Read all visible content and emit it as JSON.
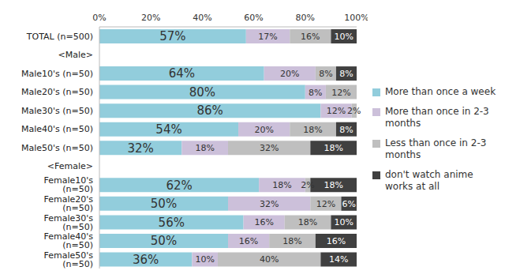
{
  "chart_data": {
    "type": "bar",
    "orientation": "horizontal",
    "stacked": true,
    "data_labels": true,
    "legend": "right",
    "grid": false,
    "categories": [
      "TOTAL (n=500)",
      "<Male>",
      "Male10's (n=50)",
      "Male20's (n=50)",
      "Male30's (n=50)",
      "Male40's (n=50)",
      "Male50's (n=50)",
      "<Female>",
      "Female10's (n=50)",
      "Female20's (n=50)",
      "Female30's (n=50)",
      "Female40's (n=50)",
      "Female50's (n=50)"
    ],
    "xlim": [
      0,
      100
    ],
    "xticks": [
      {
        "value": 0,
        "label": "0%"
      },
      {
        "value": 20,
        "label": "20%"
      },
      {
        "value": 40,
        "label": "40%"
      },
      {
        "value": 60,
        "label": "60%"
      },
      {
        "value": 80,
        "label": "80%"
      },
      {
        "value": 100,
        "label": "100%"
      }
    ],
    "series": [
      {
        "name": "More than once a week",
        "color": "#92cddc",
        "values": [
          57,
          null,
          64,
          80,
          86,
          54,
          32,
          null,
          62,
          50,
          56,
          50,
          36
        ],
        "value_labels": [
          "57%",
          null,
          "64%",
          "80%",
          "86%",
          "54%",
          "32%",
          null,
          "62%",
          "50%",
          "56%",
          "50%",
          "36%"
        ]
      },
      {
        "name": "More than once in 2-3 months",
        "color": "#ccc0da",
        "values": [
          17,
          null,
          20,
          8,
          12,
          20,
          18,
          null,
          18,
          32,
          16,
          16,
          10
        ],
        "value_labels": [
          "17%",
          null,
          "20%",
          "8%",
          "12%",
          "20%",
          "18%",
          null,
          "18%",
          "32%",
          "16%",
          "16%",
          "10%"
        ]
      },
      {
        "name": "Less than once in 2-3 months",
        "color": "#bfbfbf",
        "values": [
          16,
          null,
          8,
          12,
          2,
          18,
          32,
          null,
          2,
          12,
          18,
          18,
          40
        ],
        "value_labels": [
          "16%",
          null,
          "8%",
          "12%",
          "2%",
          "18%",
          "32%",
          null,
          "2%",
          "12%",
          "18%",
          "18%",
          "40%"
        ]
      },
      {
        "name": "don't watch anime works at all",
        "color": "#404040",
        "values": [
          10,
          null,
          8,
          null,
          null,
          8,
          18,
          null,
          18,
          6,
          10,
          16,
          14
        ],
        "value_labels": [
          "10%",
          null,
          "8%",
          null,
          null,
          "8%",
          "18%",
          null,
          "18%",
          "6%",
          "10%",
          "16%",
          "14%"
        ]
      }
    ]
  }
}
